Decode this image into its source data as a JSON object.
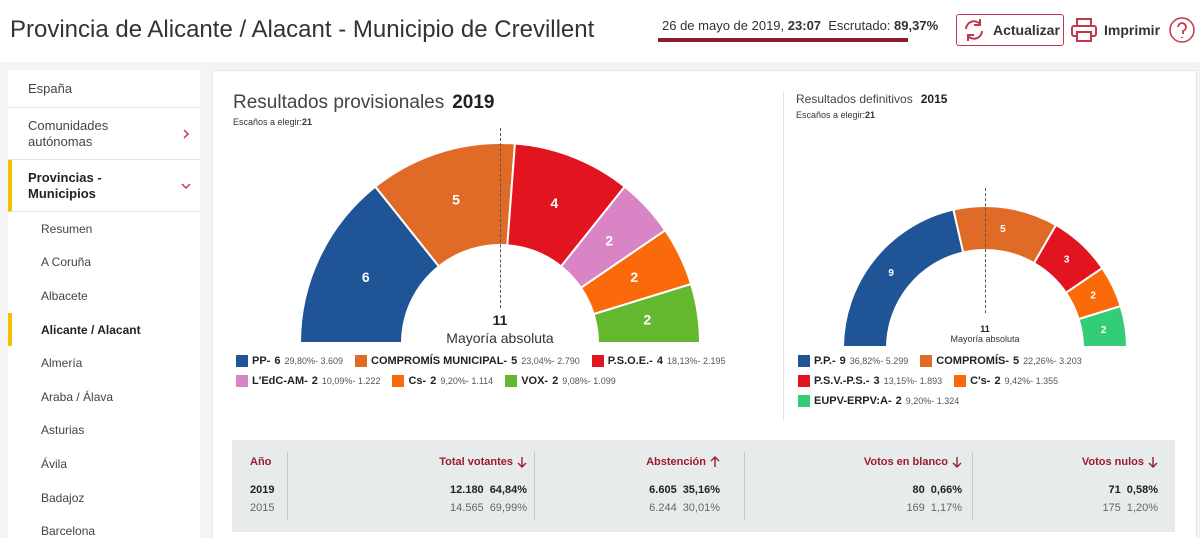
{
  "header": {
    "title": "Provincia de Alicante / Alacant - Municipio de Crevillent",
    "date": "26 de mayo de 2019,",
    "time": "23:07",
    "scrutiny_label": "Escrutado:",
    "scrutiny": {
      "value": 89.37,
      "label": "89,37%"
    },
    "refresh": "Actualizar",
    "print": "Imprimir"
  },
  "sidebar": {
    "top": [
      "España",
      "Comunidades autónomas",
      "Provincias - Municipios"
    ],
    "selected_top": 2,
    "sub": [
      "Resumen",
      "A Coruña",
      "Albacete",
      "Alicante / Alacant",
      "Almería",
      "Araba / Álava",
      "Asturias",
      "Ávila",
      "Badajoz",
      "Barcelona"
    ],
    "selected_sub": 3
  },
  "charts": [
    {
      "title": "Resultados provisionales",
      "year": "2019",
      "seats_label": "Escaños a elegir:",
      "seats_total": "21",
      "majority": "11",
      "majority_label": "Mayoría absoluta",
      "parties": [
        {
          "name": "PP-",
          "seats": 6,
          "detail": "29,80%- 3.609",
          "color": "#1f5597"
        },
        {
          "name": "COMPROMÍS MUNICIPAL-",
          "seats": 5,
          "detail": "23,04%- 2.790",
          "color": "#df6b27"
        },
        {
          "name": "P.S.O.E.-",
          "seats": 4,
          "detail": "18,13%- 2.195",
          "color": "#e2141f"
        },
        {
          "name": "L'EdC-AM-",
          "seats": 2,
          "detail": "10,09%- 1.222",
          "color": "#d884c5"
        },
        {
          "name": "Cs-",
          "seats": 2,
          "detail": "9,20%- 1.114",
          "color": "#fa6a0a"
        },
        {
          "name": "VOX-",
          "seats": 2,
          "detail": "9,08%- 1.099",
          "color": "#63b82f"
        }
      ]
    },
    {
      "title": "Resultados definitivos",
      "year": "2015",
      "seats_label": "Escaños a elegir:",
      "seats_total": "21",
      "majority": "11",
      "majority_label": "Mayoría absoluta",
      "parties": [
        {
          "name": "P.P.-",
          "seats": 9,
          "detail": "36,82%- 5.299",
          "color": "#1f5597"
        },
        {
          "name": "COMPROMÍS-",
          "seats": 5,
          "detail": "22,26%- 3.203",
          "color": "#df6b27"
        },
        {
          "name": "P.S.V.-P.S.-",
          "seats": 3,
          "detail": "13,15%- 1.893",
          "color": "#e2141f"
        },
        {
          "name": "C's-",
          "seats": 2,
          "detail": "9,42%- 1.355",
          "color": "#fa6a0a"
        },
        {
          "name": "EUPV-ERPV:A-",
          "seats": 2,
          "detail": "9,20%- 1.324",
          "color": "#33cc77"
        }
      ]
    }
  ],
  "table": {
    "headers": [
      {
        "label": "Año"
      },
      {
        "label": "Total votantes",
        "sort": "down"
      },
      {
        "label": "Abstención",
        "sort": "up"
      },
      {
        "label": "Votos en blanco",
        "sort": "down"
      },
      {
        "label": "Votos nulos",
        "sort": "down"
      }
    ],
    "rows": [
      {
        "year": "2019",
        "cells": [
          [
            "12.180",
            "64,84%"
          ],
          [
            "6.605",
            "35,16%"
          ],
          [
            "80",
            "0,66%"
          ],
          [
            "71",
            "0,58%"
          ]
        ]
      },
      {
        "year": "2015",
        "cells": [
          [
            "14.565",
            "69,99%"
          ],
          [
            "6.244",
            "30,01%"
          ],
          [
            "169",
            "1,17%"
          ],
          [
            "175",
            "1,20%"
          ]
        ]
      }
    ]
  }
}
